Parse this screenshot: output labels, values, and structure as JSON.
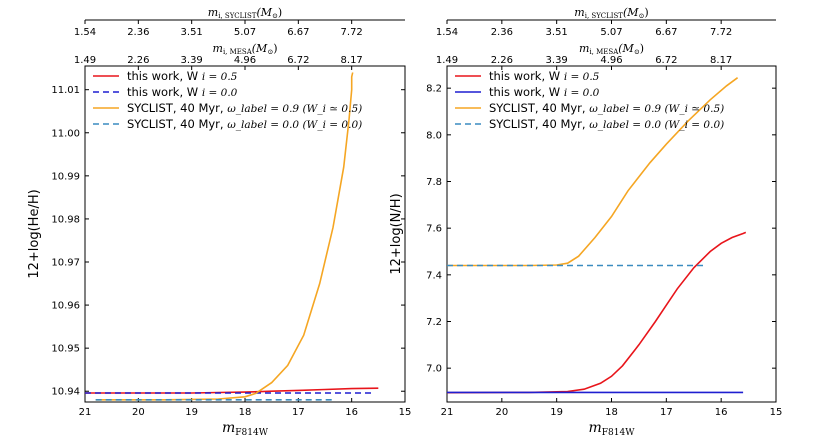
{
  "chart_data": [
    {
      "type": "line",
      "ylabel": "12+log(He/H)",
      "xlabel": "m_F814W",
      "xlim": [
        21,
        15
      ],
      "ylim": [
        10.9375,
        11.0155
      ],
      "xticks": [
        "21",
        "20",
        "19",
        "18",
        "17",
        "16",
        "15"
      ],
      "xtick_values": [
        21,
        20,
        19,
        18,
        17,
        16,
        15
      ],
      "yticks": [
        "10.94",
        "10.95",
        "10.96",
        "10.97",
        "10.98",
        "10.99",
        "11.00",
        "11.01"
      ],
      "ytick_values": [
        10.94,
        10.95,
        10.96,
        10.97,
        10.98,
        10.99,
        11.0,
        11.01
      ],
      "top_axis_1": {
        "label": "m_i,SYCLIST (M☉)",
        "ticks": [
          "1.54",
          "2.36",
          "3.51",
          "5.07",
          "6.67",
          "7.72"
        ],
        "positions": [
          21,
          20,
          19,
          18,
          17,
          16
        ]
      },
      "top_axis_2": {
        "label": "m_i,MESA (M☉)",
        "ticks": [
          "1.49",
          "2.26",
          "3.39",
          "4.96",
          "6.72",
          "8.17"
        ],
        "positions": [
          21,
          20,
          19,
          18,
          17,
          16
        ]
      },
      "series": [
        {
          "name": "this work, W_i = 0.5",
          "legend": "this work, W",
          "legend_math": "i = 0.5",
          "color": "#e8151b",
          "dash": "solid",
          "x": [
            21.0,
            20.0,
            19.0,
            18.5,
            18.0,
            17.5,
            17.0,
            16.5,
            16.0,
            15.5
          ],
          "y": [
            10.9396,
            10.9396,
            10.9396,
            10.9397,
            10.9398,
            10.94,
            10.9402,
            10.9404,
            10.9406,
            10.9407
          ]
        },
        {
          "name": "this work, W_i = 0.0",
          "legend": "this work, W",
          "legend_math": "i = 0.0",
          "color": "#1f1fd0",
          "dash": "6,4",
          "x": [
            21.0,
            20.0,
            19.0,
            18.0,
            17.0,
            16.0,
            15.6
          ],
          "y": [
            10.9396,
            10.9396,
            10.9396,
            10.9396,
            10.9396,
            10.9396,
            10.9396
          ]
        },
        {
          "name": "SYCLIST, 40 Myr, ω_label = 0.9 (W_i ≃ 0.5)",
          "legend": "SYCLIST, 40 Myr,",
          "legend_math": "ω_label = 0.9 (W_i ≃ 0.5)",
          "color": "#f5a623",
          "dash": "solid",
          "x": [
            20.8,
            19.5,
            18.5,
            18.0,
            17.8,
            17.5,
            17.2,
            16.9,
            16.6,
            16.35,
            16.15,
            16.05,
            16.0,
            16.0,
            15.98
          ],
          "y": [
            10.938,
            10.938,
            10.9382,
            10.9387,
            10.9395,
            10.942,
            10.946,
            10.953,
            10.965,
            10.978,
            10.992,
            11.003,
            11.01,
            11.013,
            11.014
          ]
        },
        {
          "name": "SYCLIST, 40 Myr, ω_label = 0.0 (W_i = 0.0)",
          "legend": "SYCLIST, 40 Myr,",
          "legend_math": "ω_label = 0.0 (W_i = 0.0)",
          "color": "#3a8cc0",
          "dash": "6,4",
          "x": [
            20.8,
            19.5,
            18.5,
            17.5,
            16.5,
            16.3
          ],
          "y": [
            10.938,
            10.938,
            10.938,
            10.938,
            10.938,
            10.938
          ]
        }
      ]
    },
    {
      "type": "line",
      "ylabel": "12+log(N/H)",
      "xlabel": "m_F814W",
      "xlim": [
        21,
        15
      ],
      "ylim": [
        6.855,
        8.295
      ],
      "xticks": [
        "21",
        "20",
        "19",
        "18",
        "17",
        "16",
        "15"
      ],
      "xtick_values": [
        21,
        20,
        19,
        18,
        17,
        16,
        15
      ],
      "yticks": [
        "7.0",
        "7.2",
        "7.4",
        "7.6",
        "7.8",
        "8.0",
        "8.2"
      ],
      "ytick_values": [
        7.0,
        7.2,
        7.4,
        7.6,
        7.8,
        8.0,
        8.2
      ],
      "top_axis_1": {
        "label": "m_i,SYCLIST (M☉)",
        "ticks": [
          "1.54",
          "2.36",
          "3.51",
          "5.07",
          "6.67",
          "7.72"
        ],
        "positions": [
          21,
          20,
          19,
          18,
          17,
          16
        ]
      },
      "top_axis_2": {
        "label": "m_i,MESA (M☉)",
        "ticks": [
          "1.49",
          "2.26",
          "3.39",
          "4.96",
          "6.72",
          "8.17"
        ],
        "positions": [
          21,
          20,
          19,
          18,
          17,
          16
        ]
      },
      "series": [
        {
          "name": "this work, W_i = 0.5",
          "legend": "this work, W",
          "legend_math": "i = 0.5",
          "color": "#e8151b",
          "dash": "solid",
          "x": [
            21.0,
            19.5,
            18.8,
            18.5,
            18.2,
            18.0,
            17.8,
            17.5,
            17.2,
            17.0,
            16.8,
            16.5,
            16.2,
            16.0,
            15.8,
            15.6,
            15.55
          ],
          "y": [
            6.895,
            6.896,
            6.9,
            6.91,
            6.935,
            6.965,
            7.01,
            7.1,
            7.2,
            7.27,
            7.34,
            7.43,
            7.5,
            7.535,
            7.56,
            7.577,
            7.582
          ]
        },
        {
          "name": "this work, W_i = 0.0",
          "legend": "this work, W",
          "legend_math": "i = 0.0",
          "color": "#1f1fd0",
          "dash": "solid",
          "x": [
            21.0,
            20.0,
            19.0,
            18.0,
            17.0,
            16.0,
            15.6
          ],
          "y": [
            6.896,
            6.896,
            6.896,
            6.896,
            6.896,
            6.896,
            6.896
          ]
        },
        {
          "name": "SYCLIST, 40 Myr, ω_label = 0.9 (W_i ≃ 0.5)",
          "legend": "SYCLIST, 40 Myr,",
          "legend_math": "ω_label = 0.9 (W_i ≃ 0.5)",
          "color": "#f5a623",
          "dash": "solid",
          "x": [
            21.0,
            19.5,
            19.0,
            18.8,
            18.6,
            18.3,
            18.0,
            17.7,
            17.3,
            17.0,
            16.6,
            16.2,
            15.9,
            15.7
          ],
          "y": [
            7.44,
            7.44,
            7.442,
            7.45,
            7.48,
            7.56,
            7.65,
            7.76,
            7.88,
            7.96,
            8.06,
            8.15,
            8.21,
            8.245
          ]
        },
        {
          "name": "SYCLIST, 40 Myr, ω_label = 0.0 (W_i = 0.0)",
          "legend": "SYCLIST, 40 Myr,",
          "legend_math": "ω_label = 0.0 (W_i = 0.0)",
          "color": "#3a8cc0",
          "dash": "6,4",
          "x": [
            21.0,
            20.0,
            19.0,
            18.0,
            17.0,
            16.3
          ],
          "y": [
            7.44,
            7.44,
            7.44,
            7.44,
            7.44,
            7.44
          ]
        }
      ]
    }
  ]
}
